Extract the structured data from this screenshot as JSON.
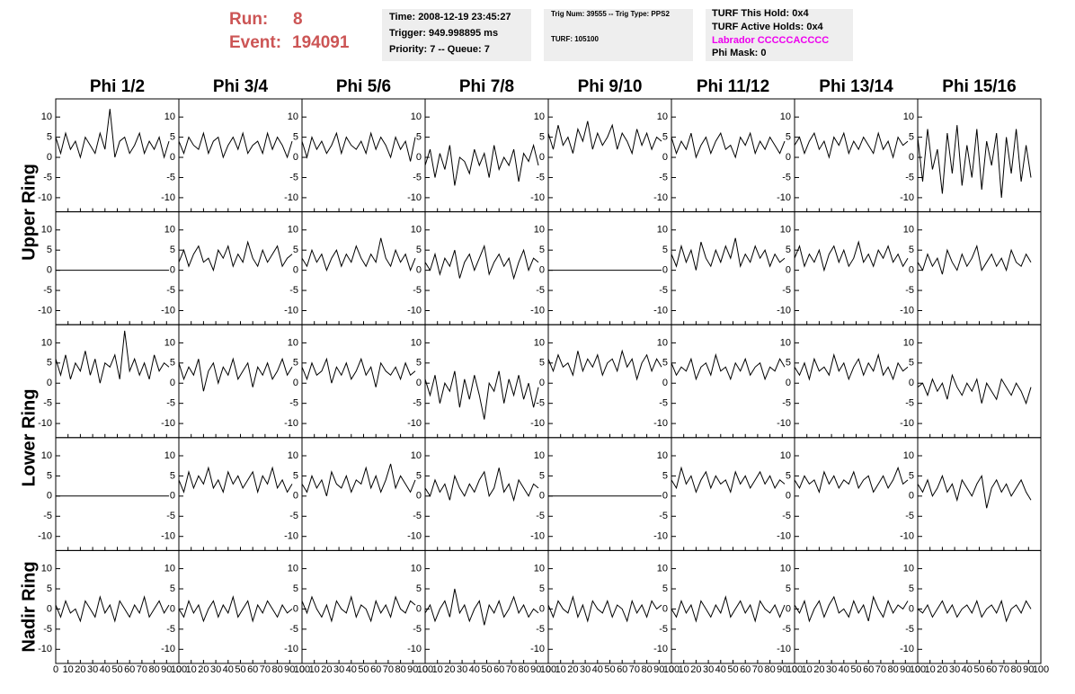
{
  "header": {
    "run_label": "Run:",
    "run": "8",
    "event_label": "Event:",
    "event": "194091"
  },
  "info": {
    "box1": [
      "Time: 2008-12-19 23:45:27",
      "Trigger: 949.998895 ms",
      "Priority: 7 -- Queue: 7"
    ],
    "box2": [
      "Trig Num: 39555 -- Trig Type: PPS2",
      "TURF: 105100"
    ],
    "box3": [
      "TURF This Hold: 0x4",
      "TURF Active Holds: 0x4",
      "Labrador CCCCCACCCC",
      "Phi Mask: 0"
    ]
  },
  "column_titles": [
    "Phi 1/2",
    "Phi 3/4",
    "Phi 5/6",
    "Phi 7/8",
    "Phi 9/10",
    "Phi 11/12",
    "Phi 13/14",
    "Phi 15/16"
  ],
  "row_labels": [
    "Upper Ring",
    "Lower Ring",
    "Nadir Ring"
  ],
  "axes": {
    "x": [
      0,
      4,
      8,
      12,
      16,
      20,
      24,
      28,
      32,
      36,
      40,
      44,
      48,
      52,
      56,
      60,
      64,
      68,
      72,
      76,
      80,
      84,
      88,
      92
    ],
    "xlim": [
      0,
      100
    ],
    "xticks": [
      0,
      10,
      20,
      30,
      40,
      50,
      60,
      70,
      80,
      90,
      100
    ],
    "ylim": [
      -13.5,
      14.5
    ],
    "yticks": [
      -10,
      -5,
      0,
      5,
      10
    ]
  },
  "chart_data": [
    {
      "type": "line",
      "values": [
        5,
        1,
        6,
        2,
        4,
        0,
        5,
        3,
        1,
        6,
        2,
        12,
        0,
        4,
        5,
        1,
        3,
        6,
        1,
        4,
        2,
        5,
        0,
        4
      ]
    },
    {
      "type": "line",
      "values": [
        4,
        1,
        5,
        3,
        2,
        6,
        1,
        4,
        5,
        0,
        3,
        5,
        2,
        6,
        1,
        3,
        4,
        1,
        6,
        2,
        5,
        3,
        0,
        4
      ]
    },
    {
      "type": "line",
      "values": [
        4,
        0,
        5,
        2,
        4,
        1,
        3,
        6,
        1,
        5,
        3,
        2,
        4,
        1,
        6,
        2,
        5,
        3,
        0,
        5,
        2,
        4,
        -1,
        5
      ]
    },
    {
      "type": "line",
      "values": [
        -2,
        2,
        -5,
        1,
        -3,
        3,
        -7,
        0,
        -1,
        -4,
        2,
        -2,
        1,
        -5,
        3,
        -3,
        0,
        -2,
        2,
        -6,
        1,
        -1,
        3,
        -2
      ]
    },
    {
      "type": "line",
      "values": [
        6,
        2,
        8,
        3,
        5,
        1,
        7,
        4,
        9,
        2,
        6,
        3,
        5,
        8,
        2,
        6,
        4,
        1,
        7,
        3,
        6,
        2,
        5,
        4
      ]
    },
    {
      "type": "line",
      "values": [
        5,
        1,
        4,
        2,
        6,
        0,
        3,
        5,
        1,
        4,
        6,
        2,
        3,
        0,
        5,
        3,
        6,
        1,
        4,
        2,
        5,
        3,
        1,
        4
      ]
    },
    {
      "type": "line",
      "values": [
        3,
        5,
        1,
        4,
        6,
        2,
        4,
        0,
        5,
        3,
        6,
        1,
        4,
        2,
        5,
        3,
        1,
        6,
        2,
        4,
        0,
        5,
        3,
        4
      ]
    },
    {
      "type": "line",
      "values": [
        5,
        -6,
        7,
        -3,
        2,
        -9,
        6,
        -4,
        8,
        -7,
        3,
        -5,
        7,
        -8,
        4,
        -2,
        6,
        -10,
        5,
        -4,
        7,
        -6,
        3,
        -5
      ]
    },
    {
      "type": "line",
      "values": [
        0,
        0,
        0,
        0,
        0,
        0,
        0,
        0,
        0,
        0,
        0,
        0,
        0,
        0,
        0,
        0,
        0,
        0,
        0,
        0,
        0,
        0,
        0,
        0
      ]
    },
    {
      "type": "line",
      "values": [
        2,
        5,
        1,
        4,
        6,
        2,
        3,
        0,
        5,
        3,
        6,
        1,
        4,
        2,
        7,
        3,
        1,
        5,
        2,
        4,
        6,
        1,
        3,
        4
      ]
    },
    {
      "type": "line",
      "values": [
        3,
        1,
        5,
        2,
        4,
        0,
        3,
        5,
        1,
        4,
        2,
        6,
        3,
        1,
        4,
        2,
        8,
        3,
        1,
        5,
        2,
        4,
        0,
        3
      ]
    },
    {
      "type": "line",
      "values": [
        2,
        0,
        4,
        -1,
        3,
        1,
        5,
        -2,
        2,
        4,
        0,
        3,
        6,
        -1,
        2,
        4,
        1,
        3,
        -2,
        2,
        5,
        0,
        3,
        2
      ]
    },
    {
      "type": "line",
      "values": [
        0,
        0,
        0,
        0,
        0,
        0,
        0,
        0,
        0,
        0,
        0,
        0,
        0,
        0,
        0,
        0,
        0,
        0,
        0,
        0,
        0,
        0,
        0,
        0
      ]
    },
    {
      "type": "line",
      "values": [
        4,
        1,
        6,
        2,
        5,
        0,
        7,
        3,
        1,
        5,
        2,
        6,
        3,
        8,
        1,
        4,
        2,
        6,
        3,
        5,
        1,
        4,
        2,
        3
      ]
    },
    {
      "type": "line",
      "values": [
        3,
        6,
        1,
        4,
        2,
        5,
        0,
        4,
        6,
        2,
        5,
        1,
        3,
        7,
        2,
        4,
        1,
        5,
        3,
        6,
        2,
        4,
        1,
        3
      ]
    },
    {
      "type": "line",
      "values": [
        2,
        0,
        4,
        1,
        3,
        -1,
        5,
        2,
        0,
        4,
        1,
        3,
        6,
        0,
        2,
        4,
        1,
        3,
        0,
        5,
        2,
        1,
        4,
        2
      ]
    },
    {
      "type": "line",
      "values": [
        6,
        2,
        7,
        1,
        5,
        3,
        8,
        2,
        6,
        0,
        5,
        4,
        7,
        1,
        13,
        3,
        6,
        2,
        5,
        1,
        7,
        3,
        5,
        4
      ]
    },
    {
      "type": "line",
      "values": [
        5,
        1,
        4,
        2,
        6,
        -2,
        3,
        5,
        0,
        4,
        2,
        6,
        1,
        3,
        5,
        -1,
        4,
        2,
        5,
        1,
        3,
        6,
        2,
        4
      ]
    },
    {
      "type": "line",
      "values": [
        4,
        1,
        5,
        2,
        3,
        6,
        0,
        4,
        2,
        5,
        1,
        3,
        6,
        2,
        4,
        -1,
        5,
        3,
        2,
        4,
        1,
        5,
        2,
        3
      ]
    },
    {
      "type": "line",
      "values": [
        1,
        -3,
        2,
        -5,
        0,
        -2,
        3,
        -6,
        1,
        -4,
        2,
        -3,
        -9,
        0,
        -2,
        3,
        -5,
        1,
        -3,
        2,
        -4,
        0,
        -6,
        -1
      ]
    },
    {
      "type": "line",
      "values": [
        6,
        3,
        7,
        4,
        5,
        2,
        8,
        3,
        6,
        4,
        7,
        2,
        5,
        6,
        3,
        8,
        4,
        6,
        1,
        5,
        7,
        3,
        6,
        4
      ]
    },
    {
      "type": "line",
      "values": [
        5,
        2,
        4,
        3,
        6,
        1,
        4,
        5,
        2,
        7,
        3,
        4,
        1,
        5,
        3,
        6,
        2,
        4,
        5,
        1,
        4,
        3,
        6,
        4
      ]
    },
    {
      "type": "line",
      "values": [
        4,
        2,
        5,
        1,
        6,
        3,
        4,
        2,
        7,
        3,
        5,
        1,
        4,
        6,
        2,
        5,
        3,
        7,
        2,
        4,
        1,
        5,
        3,
        4
      ]
    },
    {
      "type": "line",
      "values": [
        -1,
        0,
        -3,
        1,
        -2,
        0,
        -4,
        2,
        -1,
        -3,
        0,
        -2,
        1,
        -5,
        0,
        -2,
        -4,
        1,
        -1,
        -3,
        0,
        -2,
        -5,
        -1
      ]
    },
    {
      "type": "line",
      "values": [
        0,
        0,
        0,
        0,
        0,
        0,
        0,
        0,
        0,
        0,
        0,
        0,
        0,
        0,
        0,
        0,
        0,
        0,
        0,
        0,
        0,
        0,
        0,
        0
      ]
    },
    {
      "type": "line",
      "values": [
        4,
        1,
        6,
        2,
        5,
        3,
        7,
        2,
        4,
        1,
        6,
        3,
        5,
        2,
        4,
        6,
        1,
        5,
        3,
        7,
        2,
        4,
        1,
        3
      ]
    },
    {
      "type": "line",
      "values": [
        3,
        1,
        5,
        2,
        4,
        0,
        6,
        3,
        2,
        5,
        1,
        4,
        3,
        7,
        2,
        5,
        1,
        4,
        8,
        2,
        5,
        3,
        1,
        4
      ]
    },
    {
      "type": "line",
      "values": [
        2,
        0,
        4,
        1,
        3,
        -1,
        5,
        2,
        0,
        3,
        1,
        4,
        6,
        0,
        2,
        7,
        1,
        3,
        -1,
        4,
        2,
        0,
        3,
        2
      ]
    },
    {
      "type": "line",
      "values": [
        0,
        0,
        0,
        0,
        0,
        0,
        0,
        0,
        0,
        0,
        0,
        0,
        0,
        0,
        0,
        0,
        0,
        0,
        0,
        0,
        0,
        0,
        0,
        0
      ]
    },
    {
      "type": "line",
      "values": [
        4,
        2,
        7,
        3,
        5,
        1,
        4,
        6,
        2,
        5,
        3,
        4,
        1,
        6,
        3,
        5,
        2,
        4,
        6,
        3,
        5,
        2,
        4,
        3
      ]
    },
    {
      "type": "line",
      "values": [
        4,
        2,
        5,
        3,
        4,
        1,
        6,
        3,
        5,
        2,
        4,
        3,
        6,
        2,
        4,
        5,
        1,
        3,
        5,
        2,
        4,
        7,
        3,
        4
      ]
    },
    {
      "type": "line",
      "values": [
        3,
        1,
        4,
        0,
        2,
        5,
        1,
        3,
        -1,
        4,
        2,
        0,
        3,
        5,
        -3,
        2,
        4,
        1,
        3,
        0,
        2,
        4,
        1,
        -1
      ]
    },
    {
      "type": "line",
      "values": [
        1,
        -2,
        2,
        -1,
        0,
        -3,
        2,
        0,
        -2,
        3,
        -1,
        1,
        -3,
        2,
        0,
        -2,
        1,
        -1,
        3,
        -2,
        0,
        2,
        -1,
        1
      ]
    },
    {
      "type": "line",
      "values": [
        0,
        -2,
        2,
        -1,
        1,
        -3,
        0,
        2,
        -2,
        1,
        -1,
        3,
        -2,
        0,
        2,
        -3,
        1,
        -1,
        2,
        0,
        -2,
        1,
        -1,
        0
      ]
    },
    {
      "type": "line",
      "values": [
        2,
        -1,
        3,
        0,
        -2,
        1,
        -3,
        2,
        0,
        -1,
        3,
        -2,
        1,
        0,
        -3,
        2,
        -1,
        1,
        -2,
        3,
        0,
        -1,
        2,
        1
      ]
    },
    {
      "type": "line",
      "values": [
        -1,
        1,
        -3,
        0,
        2,
        -2,
        5,
        -1,
        1,
        -3,
        0,
        2,
        -4,
        1,
        -1,
        2,
        -2,
        0,
        3,
        -1,
        1,
        -2,
        0,
        -1
      ]
    },
    {
      "type": "line",
      "values": [
        1,
        -2,
        2,
        0,
        -1,
        3,
        -2,
        1,
        -3,
        2,
        0,
        -1,
        2,
        -2,
        1,
        0,
        -3,
        2,
        -1,
        1,
        -2,
        2,
        0,
        1
      ]
    },
    {
      "type": "line",
      "values": [
        0,
        -2,
        2,
        -1,
        1,
        -3,
        2,
        0,
        -2,
        1,
        -1,
        3,
        -2,
        0,
        2,
        -1,
        1,
        -3,
        2,
        0,
        -1,
        1,
        -2,
        1
      ]
    },
    {
      "type": "line",
      "values": [
        1,
        -1,
        2,
        -3,
        0,
        2,
        -2,
        1,
        3,
        -1,
        0,
        -2,
        2,
        -1,
        1,
        -3,
        3,
        0,
        -2,
        2,
        -1,
        1,
        0,
        2
      ]
    },
    {
      "type": "line",
      "values": [
        0,
        -1,
        1,
        -2,
        0,
        2,
        -1,
        1,
        -2,
        0,
        1,
        -1,
        2,
        -2,
        0,
        1,
        -1,
        2,
        -3,
        0,
        1,
        -1,
        2,
        0
      ]
    }
  ]
}
